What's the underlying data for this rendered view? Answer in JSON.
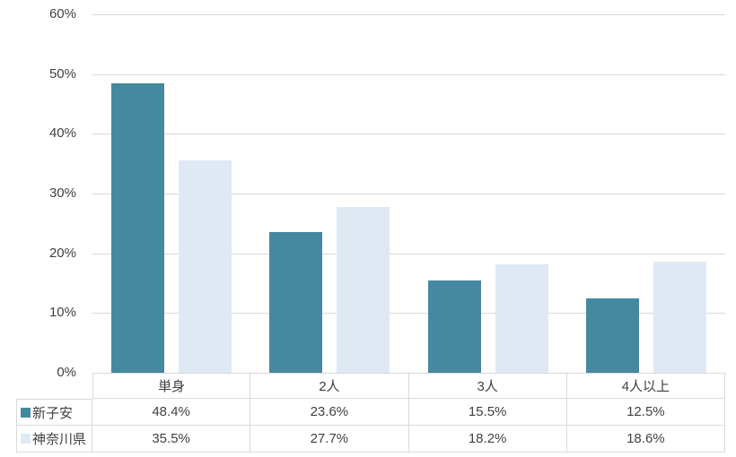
{
  "chart_data": {
    "type": "bar",
    "title": "",
    "categories": [
      "単身",
      "2人",
      "3人",
      "4人以上"
    ],
    "series": [
      {
        "name": "新子安",
        "color": "#4589a1",
        "values": [
          48.4,
          23.6,
          15.5,
          12.5
        ],
        "labels": [
          "48.4%",
          "23.6%",
          "15.5%",
          "12.5%"
        ]
      },
      {
        "name": "神奈川県",
        "color": "#dee9f4",
        "values": [
          35.5,
          27.7,
          18.2,
          18.6
        ],
        "labels": [
          "35.5%",
          "27.7%",
          "18.2%",
          "18.6%"
        ]
      }
    ],
    "ylim": [
      0,
      60
    ],
    "ytick_step": 10,
    "yticks": [
      {
        "value": 60,
        "label": "60%"
      },
      {
        "value": 50,
        "label": "50%"
      },
      {
        "value": 40,
        "label": "40%"
      },
      {
        "value": 30,
        "label": "30%"
      },
      {
        "value": 20,
        "label": "20%"
      },
      {
        "value": 10,
        "label": "10%"
      },
      {
        "value": 0,
        "label": "0%"
      }
    ],
    "grid": true,
    "legend_position": "table-left-column"
  },
  "colors": {
    "gridline": "#d9d9d9",
    "table_border": "#d9d9d9",
    "text": "#404040",
    "background": "#ffffff"
  }
}
